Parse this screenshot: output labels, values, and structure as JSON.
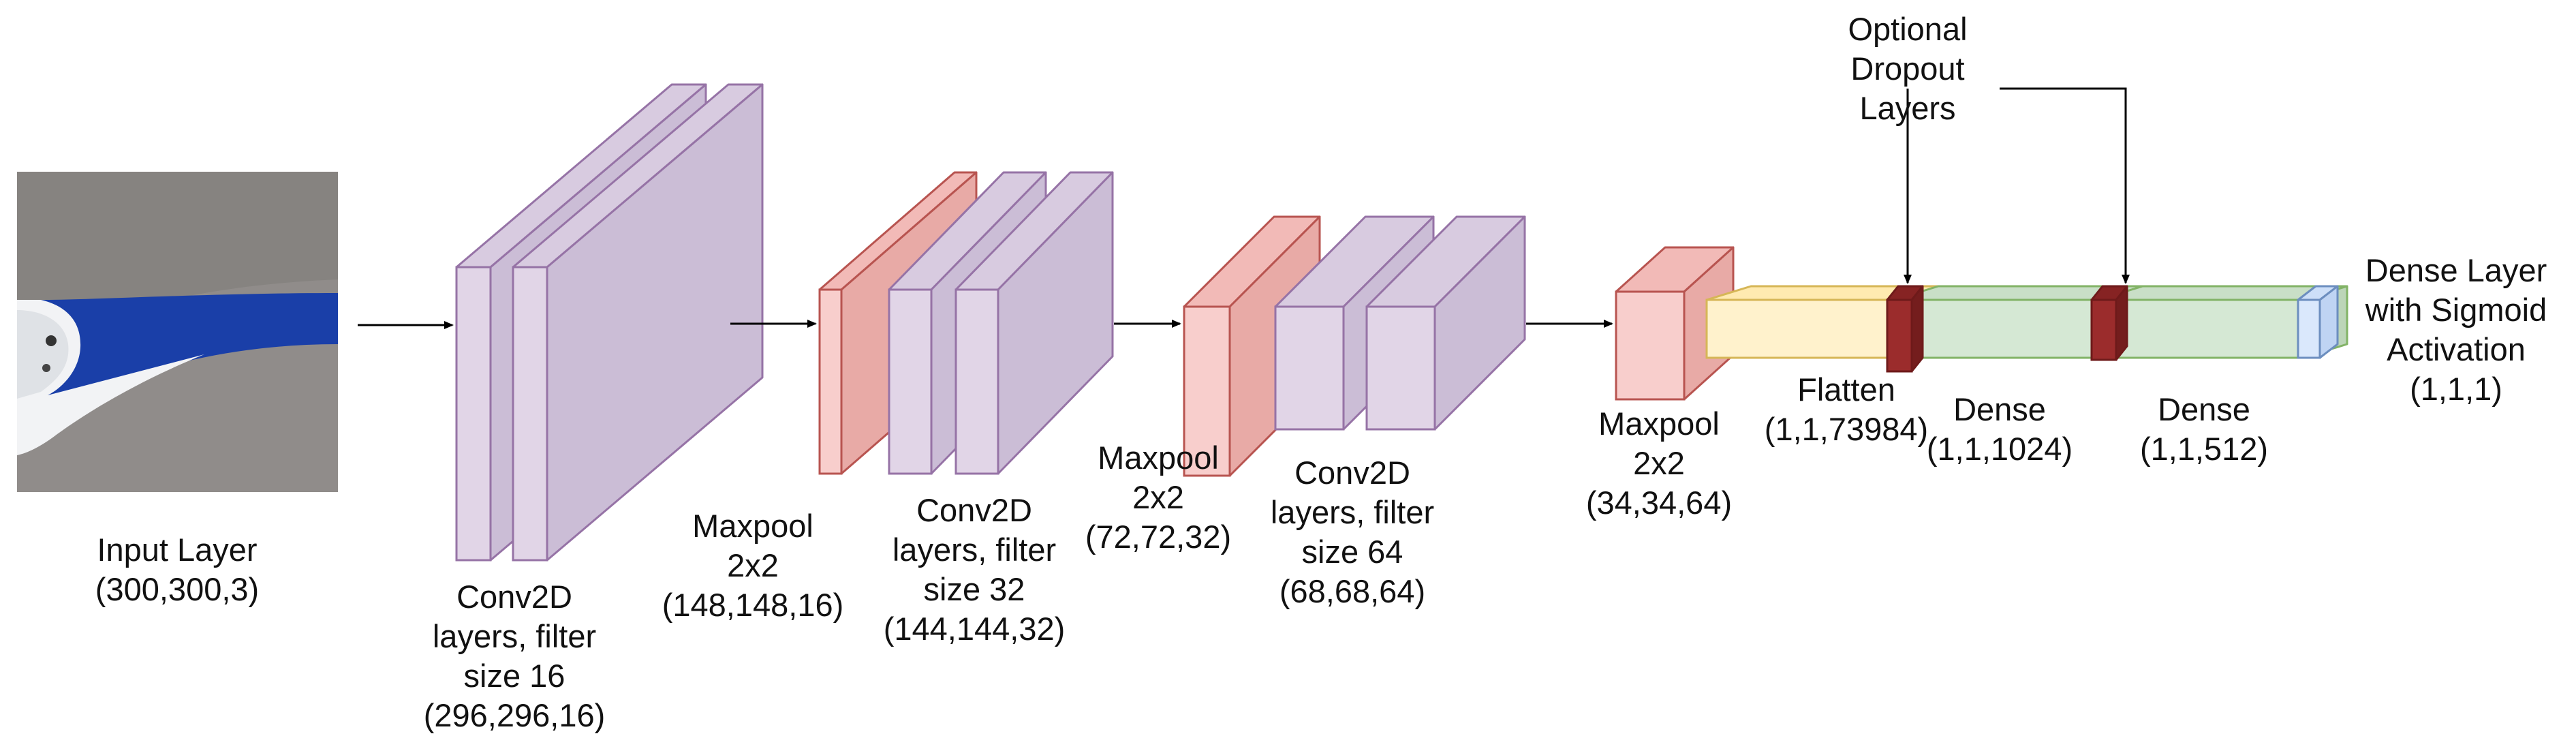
{
  "colors": {
    "conv_front": "#e1d5e7",
    "conv_top": "#d8cbe0",
    "conv_side": "#cbbdd6",
    "conv_stroke": "#9673a6",
    "pool_front": "#f8cecc",
    "pool_top": "#f2bab7",
    "pool_side": "#e8aaa6",
    "pool_stroke": "#b85450",
    "flatten_fill": "#fff2cc",
    "flatten_stroke": "#d6b656",
    "dense_fill": "#d5e8d4",
    "dense_stroke": "#82b366",
    "dropout_fill": "#9b2c2c",
    "dropout_stroke": "#6e1a1a",
    "output_fill": "#dae8fc",
    "output_stroke": "#6c8ebf",
    "arrow": "#000000"
  },
  "input_image": {
    "icon": "photo-of-propeller-blade",
    "background": "#8b8785",
    "blade_color": "#1a3fa8",
    "white_part": "#f2f3f5"
  },
  "labels": {
    "input": [
      "Input Layer",
      "(300,300,3)"
    ],
    "conv1": [
      "Conv2D",
      "layers, filter",
      "size 16",
      "(296,296,16)"
    ],
    "pool1": [
      "Maxpool",
      "2x2",
      "(148,148,16)"
    ],
    "conv2": [
      "Conv2D",
      "layers, filter",
      "size 32",
      "(144,144,32)"
    ],
    "pool2": [
      "Maxpool",
      "2x2",
      "(72,72,32)"
    ],
    "conv3": [
      "Conv2D",
      "layers, filter",
      "size 64",
      "(68,68,64)"
    ],
    "pool3": [
      "Maxpool",
      "2x2",
      "(34,34,64)"
    ],
    "flatten": [
      "Flatten",
      "(1,1,73984)"
    ],
    "dense1": [
      "Dense",
      "(1,1,1024)"
    ],
    "dense2": [
      "Dense",
      "(1,1,512)"
    ],
    "output": [
      "Dense Layer",
      "with Sigmoid",
      "Activation",
      "(1,1,1)"
    ],
    "dropout": [
      "Optional",
      "Dropout",
      "Layers"
    ]
  }
}
